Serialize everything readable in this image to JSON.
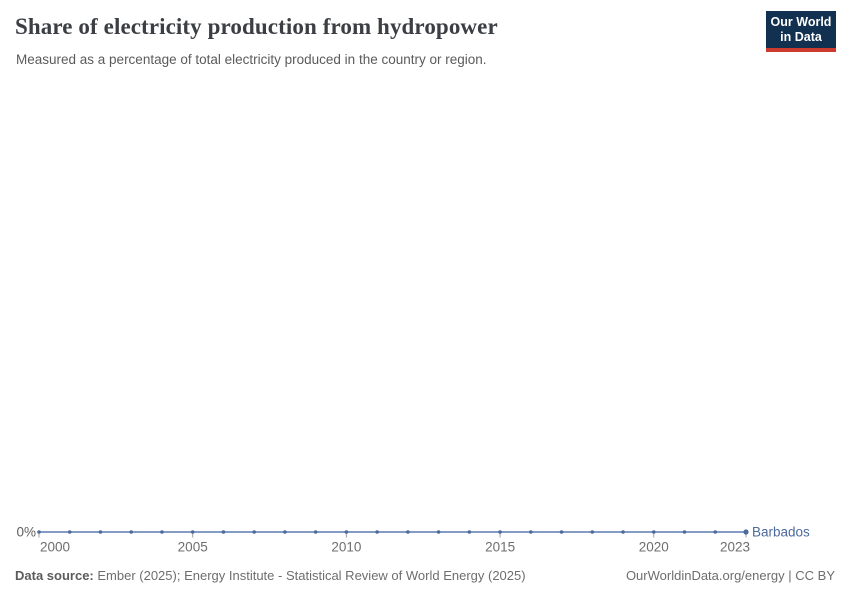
{
  "header": {
    "title": "Share of electricity production from hydropower",
    "subtitle": "Measured as a percentage of total electricity produced in the country or region.",
    "logo": {
      "line1": "Our World",
      "line2": "in Data"
    }
  },
  "chart": {
    "zero_label": "0%",
    "series_label": "Barbados"
  },
  "chart_data": {
    "type": "line",
    "title": "Share of electricity production from hydropower",
    "subtitle": "Measured as a percentage of total electricity produced in the country or region.",
    "unit": "%",
    "grid": false,
    "legend_position": "right-of-line-end",
    "x": [
      2000,
      2001,
      2002,
      2003,
      2004,
      2005,
      2006,
      2007,
      2008,
      2009,
      2010,
      2011,
      2012,
      2013,
      2014,
      2015,
      2016,
      2017,
      2018,
      2019,
      2020,
      2021,
      2022,
      2023
    ],
    "series": [
      {
        "name": "Barbados",
        "color": "#4C6A9C",
        "values": [
          0,
          0,
          0,
          0,
          0,
          0,
          0,
          0,
          0,
          0,
          0,
          0,
          0,
          0,
          0,
          0,
          0,
          0,
          0,
          0,
          0,
          0,
          0,
          0
        ]
      }
    ],
    "x_ticks": [
      2000,
      2005,
      2010,
      2015,
      2020,
      2023
    ],
    "x_tick_labels": [
      "2000",
      "2005",
      "2010",
      "2015",
      "2020",
      "2023"
    ],
    "y_axis_labels": [
      "0%"
    ],
    "ylim": [
      0,
      0
    ]
  },
  "footer": {
    "source_label": "Data source:",
    "source_text": " Ember (2025); Energy Institute - Statistical Review of World Energy (2025)",
    "right_text": "OurWorldinData.org/energy | CC BY"
  },
  "colors": {
    "line": "#5b7bb0",
    "marker": "#4C6A9C",
    "series_label": "#4C6A9C",
    "tick": "#a0a0a0",
    "tick_label": "#6e6e6e",
    "zero_label": "#5e5e5e",
    "logo_bg": "#12304f",
    "logo_accent": "#cc3a30"
  }
}
